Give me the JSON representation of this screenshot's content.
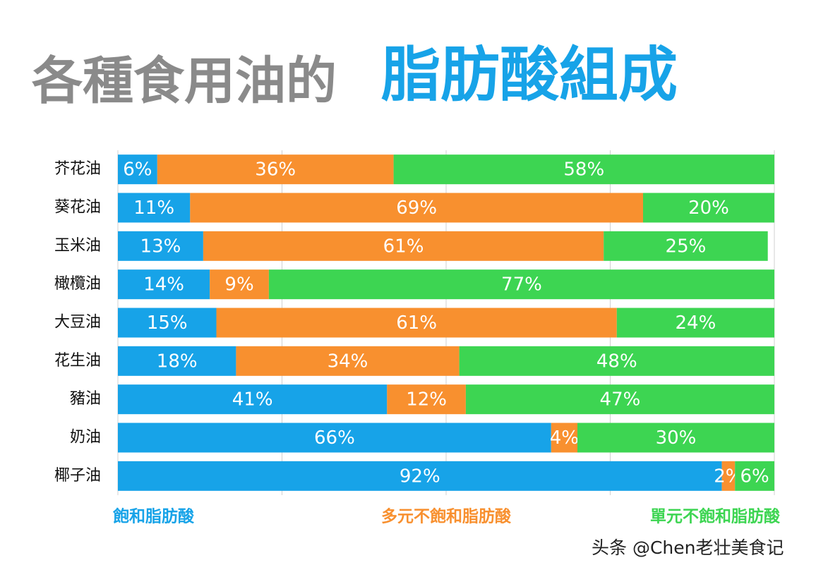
{
  "chart_data": {
    "type": "stacked-bar-horizontal",
    "title": "各種食用油的",
    "title_highlight": "脂肪酸組成",
    "categories": [
      "芥花油",
      "葵花油",
      "玉米油",
      "橄欖油",
      "大豆油",
      "花生油",
      "豬油",
      "奶油",
      "椰子油"
    ],
    "series": [
      {
        "name": "飽和脂肪酸",
        "color": "#17a3e8",
        "values": [
          6,
          11,
          13,
          14,
          15,
          18,
          41,
          66,
          92
        ],
        "value_labels": [
          "6%",
          "11%",
          "13%",
          "14%",
          "15%",
          "18%",
          "41%",
          "66%",
          "92%"
        ]
      },
      {
        "name": "多元不飽和脂肪酸",
        "color": "#f8902f",
        "values": [
          36,
          69,
          61,
          9,
          61,
          34,
          12,
          4,
          2
        ],
        "value_labels": [
          "36%",
          "69%",
          "61%",
          "9%",
          "61%",
          "34%",
          "12%",
          "4%",
          "2%"
        ]
      },
      {
        "name": "單元不飽和脂肪酸",
        "color": "#3dd552",
        "values": [
          58,
          20,
          25,
          77,
          24,
          48,
          47,
          30,
          6
        ],
        "value_labels": [
          "58%",
          "20%",
          "25%",
          "77%",
          "24%",
          "48%",
          "47%",
          "30%",
          "6%"
        ]
      }
    ],
    "xlim": [
      0,
      100
    ],
    "xticks": [
      0,
      25,
      50,
      75,
      100
    ],
    "grid": true
  },
  "watermark": "头条 @Chen老壮美食记"
}
